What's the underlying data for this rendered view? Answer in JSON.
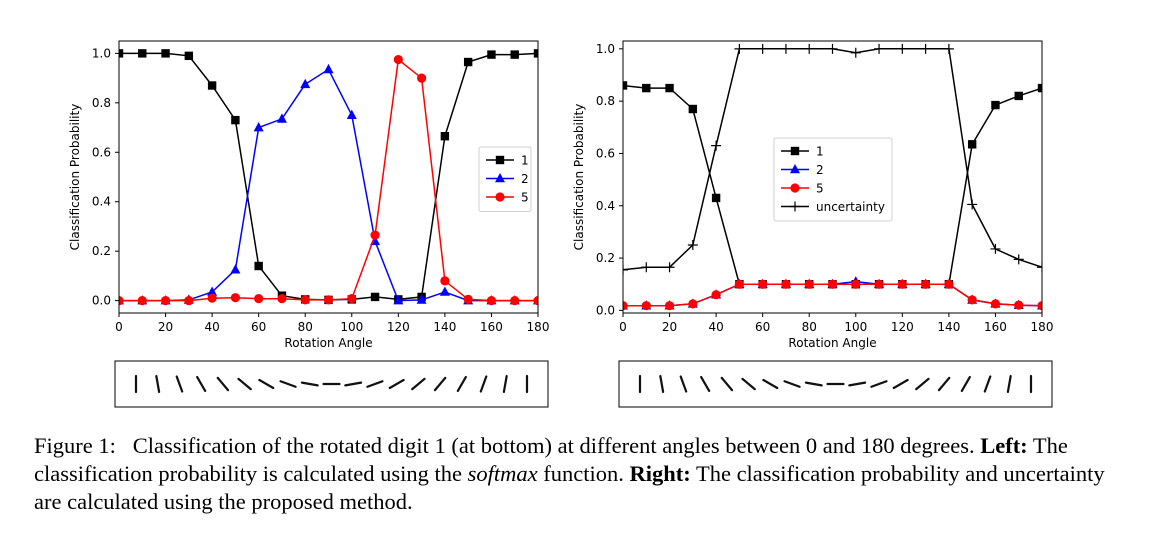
{
  "chart_data": [
    {
      "type": "line",
      "xlabel": "Rotation Angle",
      "ylabel": "Classification Probability",
      "xlim": [
        0,
        180
      ],
      "ylim": [
        -0.05,
        1.05
      ],
      "xticks": [
        0,
        20,
        40,
        60,
        80,
        100,
        120,
        140,
        160,
        180
      ],
      "yticks": [
        0.0,
        0.2,
        0.4,
        0.6,
        0.8,
        1.0
      ],
      "xtick_labels": [
        "0",
        "20",
        "40",
        "60",
        "80",
        "100",
        "120",
        "140",
        "160",
        "180"
      ],
      "ytick_labels": [
        "0.0",
        "0.2",
        "0.4",
        "0.6",
        "0.8",
        "1.0"
      ],
      "x": [
        0,
        10,
        20,
        30,
        40,
        50,
        60,
        70,
        80,
        90,
        100,
        110,
        120,
        130,
        140,
        150,
        160,
        170,
        180
      ],
      "series": [
        {
          "name": "1",
          "color": "#000000",
          "marker": "square",
          "values": [
            1.0,
            1.0,
            1.0,
            0.99,
            0.87,
            0.73,
            0.14,
            0.02,
            0.005,
            0.003,
            0.005,
            0.015,
            0.005,
            0.015,
            0.665,
            0.965,
            0.995,
            0.995,
            1.0
          ]
        },
        {
          "name": "2",
          "color": "#0000ff",
          "marker": "triangle",
          "values": [
            0.0,
            0.0,
            0.0,
            0.003,
            0.035,
            0.125,
            0.7,
            0.735,
            0.875,
            0.935,
            0.75,
            0.24,
            0.0,
            0.003,
            0.035,
            0.0,
            0.0,
            0.0,
            0.0
          ]
        },
        {
          "name": "5",
          "color": "#ff0000",
          "marker": "circle",
          "values": [
            0.0,
            0.0,
            0.0,
            0.0,
            0.01,
            0.012,
            0.008,
            0.008,
            0.003,
            0.003,
            0.008,
            0.265,
            0.975,
            0.9,
            0.08,
            0.005,
            0.0,
            0.0,
            0.0
          ]
        }
      ],
      "legend_position": "center-right"
    },
    {
      "type": "line",
      "xlabel": "Rotation Angle",
      "ylabel": "Classification Probability",
      "xlim": [
        0,
        180
      ],
      "ylim": [
        -0.01,
        1.03
      ],
      "xticks": [
        0,
        20,
        40,
        60,
        80,
        100,
        120,
        140,
        160,
        180
      ],
      "yticks": [
        0.0,
        0.2,
        0.4,
        0.6,
        0.8,
        1.0
      ],
      "xtick_labels": [
        "0",
        "20",
        "40",
        "60",
        "80",
        "100",
        "120",
        "140",
        "160",
        "180"
      ],
      "ytick_labels": [
        "0.0",
        "0.2",
        "0.4",
        "0.6",
        "0.8",
        "1.0"
      ],
      "x": [
        0,
        10,
        20,
        30,
        40,
        50,
        60,
        70,
        80,
        90,
        100,
        110,
        120,
        130,
        140,
        150,
        160,
        170,
        180
      ],
      "series": [
        {
          "name": "1",
          "color": "#000000",
          "marker": "square",
          "values": [
            0.86,
            0.85,
            0.85,
            0.77,
            0.43,
            0.1,
            0.1,
            0.1,
            0.1,
            0.1,
            0.1,
            0.1,
            0.1,
            0.1,
            0.1,
            0.635,
            0.785,
            0.82,
            0.85
          ]
        },
        {
          "name": "2",
          "color": "#0000ff",
          "marker": "triangle",
          "values": [
            0.018,
            0.018,
            0.018,
            0.025,
            0.06,
            0.1,
            0.1,
            0.1,
            0.1,
            0.1,
            0.11,
            0.1,
            0.1,
            0.1,
            0.1,
            0.04,
            0.025,
            0.02,
            0.018
          ]
        },
        {
          "name": "5",
          "color": "#ff0000",
          "marker": "circle",
          "values": [
            0.018,
            0.018,
            0.018,
            0.025,
            0.06,
            0.1,
            0.1,
            0.1,
            0.1,
            0.1,
            0.1,
            0.1,
            0.1,
            0.1,
            0.1,
            0.04,
            0.025,
            0.02,
            0.018
          ]
        },
        {
          "name": "uncertainty",
          "color": "#000000",
          "marker": "plus",
          "values": [
            0.155,
            0.165,
            0.165,
            0.25,
            0.63,
            1.0,
            1.0,
            1.0,
            1.0,
            1.0,
            0.985,
            1.0,
            1.0,
            1.0,
            1.0,
            0.405,
            0.235,
            0.195,
            0.165
          ]
        }
      ],
      "legend_position": "center"
    }
  ],
  "digit_strip_angles": [
    0,
    10,
    20,
    30,
    40,
    50,
    60,
    70,
    80,
    90,
    100,
    110,
    120,
    130,
    140,
    150,
    160,
    170,
    180
  ],
  "caption": {
    "prefix": "Figure 1:",
    "text1": "Classification of the rotated digit 1 (at bottom) at different angles between 0 and 180 degrees.",
    "left_label": "Left:",
    "text2": "The classification probability is calculated using the",
    "softmax": "softmax",
    "text3": "function.",
    "right_label": "Right:",
    "text4": "The classification probability and uncertainty are calculated using the proposed method."
  }
}
